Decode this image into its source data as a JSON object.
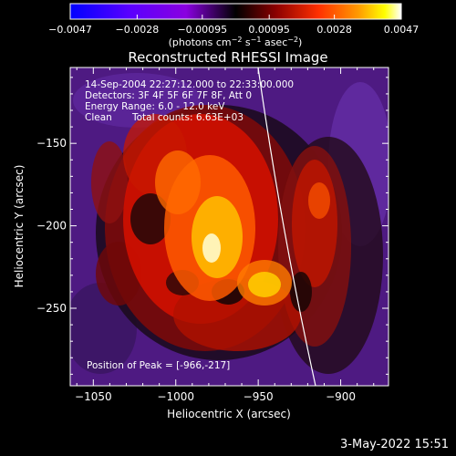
{
  "chart_data": {
    "type": "heatmap",
    "title": "Reconstructed RHESSI Image",
    "xlabel": "Heliocentric X (arcsec)",
    "ylabel": "Heliocentric Y (arcsec)",
    "xlim": [
      -1064,
      -871
    ],
    "ylim": [
      -297,
      -104
    ],
    "x_ticks": [
      -1050,
      -1000,
      -950,
      -900
    ],
    "x_tick_labels": [
      "−1050",
      "−1000",
      "−950",
      "−900"
    ],
    "y_ticks": [
      -250,
      -200,
      -150
    ],
    "y_tick_labels": [
      "−250",
      "−200",
      "−150"
    ],
    "colorbar": {
      "range": [
        -0.0047,
        0.0047
      ],
      "ticks": [
        -0.0047,
        -0.0028,
        -0.00095,
        0.00095,
        0.0028,
        0.0047
      ],
      "tick_labels": [
        "−0.0047",
        "−0.0028",
        "−0.00095",
        "0.00095",
        "0.0028",
        "0.0047"
      ],
      "label_main": "(photons cm",
      "label_sup1": "−2",
      "label_mid1": " s",
      "label_sup2": "−1",
      "label_mid2": " asec",
      "label_sup3": "−2",
      "label_end": ")",
      "colormap": [
        "#0000ff",
        "#5a00ff",
        "#8a00e0",
        "#000000",
        "#8a0000",
        "#ff3000",
        "#ff9a00",
        "#ffff00",
        "#ffffff"
      ]
    },
    "annotations": {
      "time_range": "14-Sep-2004 22:27:12.000 to 22:33:00.000",
      "detectors": "Detectors: 3F 4F 5F 6F 7F 8F, Att 0",
      "energy_range": "Energy Range: 6.0 - 12.0 keV",
      "clean_label": "Clean",
      "total_counts": "Total counts: 6.63E+03",
      "peak_position": "Position of Peak = [-966,-217]"
    },
    "peak": [
      -966,
      -217
    ]
  },
  "footer": {
    "date": "3-May-2022 15:51"
  }
}
